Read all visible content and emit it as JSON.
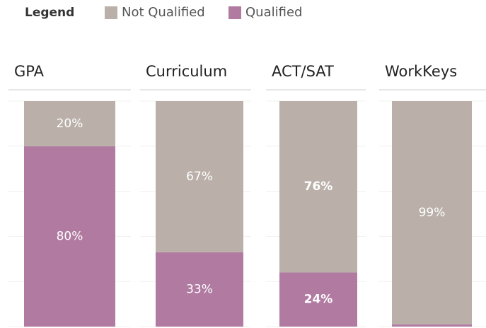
{
  "chart_data": {
    "type": "bar",
    "stacked": true,
    "legend_title": "Legend",
    "categories": [
      "GPA",
      "Curriculum",
      "ACT/SAT",
      "WorkKeys"
    ],
    "series": [
      {
        "name": "Not Qualified",
        "color": "#bab0a9",
        "values": [
          20,
          67,
          76,
          99
        ],
        "value_labels": [
          "20%",
          "67%",
          "76%",
          "99%"
        ]
      },
      {
        "name": "Qualified",
        "color": "#b07aa1",
        "values": [
          80,
          33,
          24,
          1
        ],
        "value_labels": [
          "80%",
          "33%",
          "24%",
          null
        ]
      }
    ],
    "highlighted": "ACT/SAT",
    "ylim": [
      0,
      100
    ],
    "yticks": [
      0,
      20,
      40,
      60,
      80,
      100
    ],
    "grid": true
  }
}
